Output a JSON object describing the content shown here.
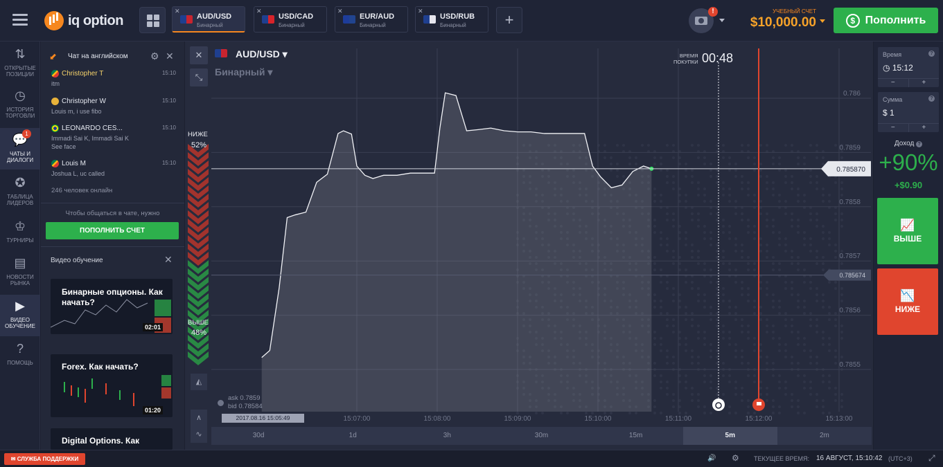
{
  "header": {
    "logo_text": "iq option",
    "tabs": [
      {
        "name": "AUD/USD",
        "type": "Бинарный",
        "active": true
      },
      {
        "name": "USD/CAD",
        "type": "Бинарный",
        "active": false
      },
      {
        "name": "EUR/AUD",
        "type": "Бинарный",
        "active": false
      },
      {
        "name": "USD/RUB",
        "type": "Бинарный",
        "active": false
      }
    ],
    "add_tab": "+",
    "camera_alert": "!",
    "account_label": "УЧЕБНЫЙ СЧЕТ",
    "account_balance": "$10,000.00",
    "deposit_label": "Пополнить"
  },
  "leftnav": [
    {
      "label": "ОТКРЫТЫЕ ПОЗИЦИИ",
      "icon": "arrows-updown-icon"
    },
    {
      "label": "ИСТОРИЯ ТОРГОВЛИ",
      "icon": "history-icon"
    },
    {
      "label": "ЧАТЫ И ДИАЛОГИ",
      "icon": "chat-icon",
      "badge": "1",
      "active": true
    },
    {
      "label": "ТАБЛИЦА ЛИДЕРОВ",
      "icon": "medal-icon"
    },
    {
      "label": "ТУРНИРЫ",
      "icon": "trophy-icon"
    },
    {
      "label": "НОВОСТИ РЫНКА",
      "icon": "news-icon"
    },
    {
      "label": "ВИДЕО ОБУЧЕНИЕ",
      "icon": "play-icon"
    },
    {
      "label": "ПОМОЩЬ",
      "icon": "help-icon"
    }
  ],
  "chat": {
    "title": "Чат на английском",
    "messages": [
      {
        "user": "Christopher T",
        "time": "15:10",
        "text": "itm",
        "flag": "za"
      },
      {
        "user": "Christopher W",
        "time": "15:10",
        "text": "Louis m, i use fibo",
        "flag": "avatar"
      },
      {
        "user": "LEONARDO CES...",
        "time": "15:10",
        "text": "Immadi Sai K, Immadi Sai K See face",
        "flag": "br"
      },
      {
        "user": "Louis M",
        "time": "15:10",
        "text": "Joshua L, uc called",
        "flag": "za"
      }
    ],
    "online": "246 человек онлайн",
    "need_deposit": "Чтобы общаться в чате, нужно",
    "deposit_button": "ПОПОЛНИТЬ СЧЕТ"
  },
  "videos": {
    "title": "Видео обучение",
    "items": [
      {
        "title": "Бинарные опционы. Как начать?",
        "duration": "02:01"
      },
      {
        "title": "Forex. Как начать?",
        "duration": "01:20"
      },
      {
        "title": "Digital Options. Как",
        "duration": ""
      }
    ]
  },
  "chart": {
    "asset": "AUD/USD",
    "asset_type": "Бинарный",
    "timer_label_1": "ВРЕМЯ",
    "timer_label_2": "ПОКУПКИ",
    "timer_value": "00:48",
    "sentiment_down_label": "НИЖЕ",
    "sentiment_down_pct": "52%",
    "sentiment_up_label": "ВЫШЕ",
    "sentiment_up_pct": "48%",
    "ask": "ask 0.7859",
    "bid": "bid 0.78584",
    "cursor_time": "2017.08.16 15:05:49",
    "current_price": "0.785870",
    "marker_price": "0.785674",
    "timeframes": [
      "30d",
      "1d",
      "3h",
      "30m",
      "15m",
      "5m",
      "2m"
    ],
    "active_timeframe": "5m"
  },
  "chart_data": {
    "type": "line",
    "ylim": [
      0.78548,
      0.78663
    ],
    "y_ticks": [
      "0.786",
      "0.7859",
      "0.7858",
      "0.7857",
      "0.7856",
      "0.7855"
    ],
    "y_tick_values": [
      0.786,
      0.7859,
      0.7858,
      0.7857,
      0.7856,
      0.7855
    ],
    "x_ticks": [
      "15:07:00",
      "15:08:00",
      "15:09:00",
      "15:10:00",
      "15:11:00",
      "15:12:00",
      "15:13:00"
    ],
    "x": [
      "15:05:49",
      "15:05:55",
      "15:06:02",
      "15:06:08",
      "15:06:14",
      "15:06:22",
      "15:06:30",
      "15:06:38",
      "15:06:46",
      "15:06:50",
      "15:06:56",
      "15:07:00",
      "15:07:06",
      "15:07:12",
      "15:07:20",
      "15:07:30",
      "15:07:40",
      "15:07:50",
      "15:07:58",
      "15:08:02",
      "15:08:06",
      "15:08:14",
      "15:08:22",
      "15:08:30",
      "15:08:40",
      "15:08:50",
      "15:09:00",
      "15:09:10",
      "15:09:20",
      "15:09:30",
      "15:09:40",
      "15:09:50",
      "15:09:56",
      "15:10:02",
      "15:10:10",
      "15:10:18",
      "15:10:26",
      "15:10:34",
      "15:10:40"
    ],
    "values": [
      0.785522,
      0.785535,
      0.78565,
      0.78578,
      0.785785,
      0.78579,
      0.785845,
      0.78586,
      0.785935,
      0.78594,
      0.785934,
      0.785875,
      0.785858,
      0.785852,
      0.785858,
      0.785858,
      0.785862,
      0.785862,
      0.785862,
      0.785945,
      0.78601,
      0.786005,
      0.78594,
      0.785942,
      0.785945,
      0.78594,
      0.785938,
      0.785938,
      0.785935,
      0.785935,
      0.785935,
      0.785935,
      0.785875,
      0.785855,
      0.785835,
      0.78584,
      0.785865,
      0.785875,
      0.78587
    ],
    "current_price": 0.78587,
    "marker_price": 0.785674,
    "purchase_line_x": "15:11:30",
    "expiry_line_x": "15:12:00"
  },
  "right": {
    "time_label": "Время",
    "time_value": "15:12",
    "amount_label": "Сумма",
    "amount_value": "$ 1",
    "minus": "−",
    "plus": "+",
    "income_label": "Доход",
    "income_pct": "+90%",
    "income_abs": "+$0.90",
    "call_label": "ВЫШЕ",
    "put_label": "НИЖЕ",
    "call_color": "#2db04c",
    "put_color": "#e0452e"
  },
  "status": {
    "support": "СЛУЖБА ПОДДЕРЖКИ",
    "time_label": "ТЕКУЩЕЕ ВРЕМЯ:",
    "time_value": "16 АВГУСТ, 15:10:42",
    "tz": "(UTC+3)"
  }
}
